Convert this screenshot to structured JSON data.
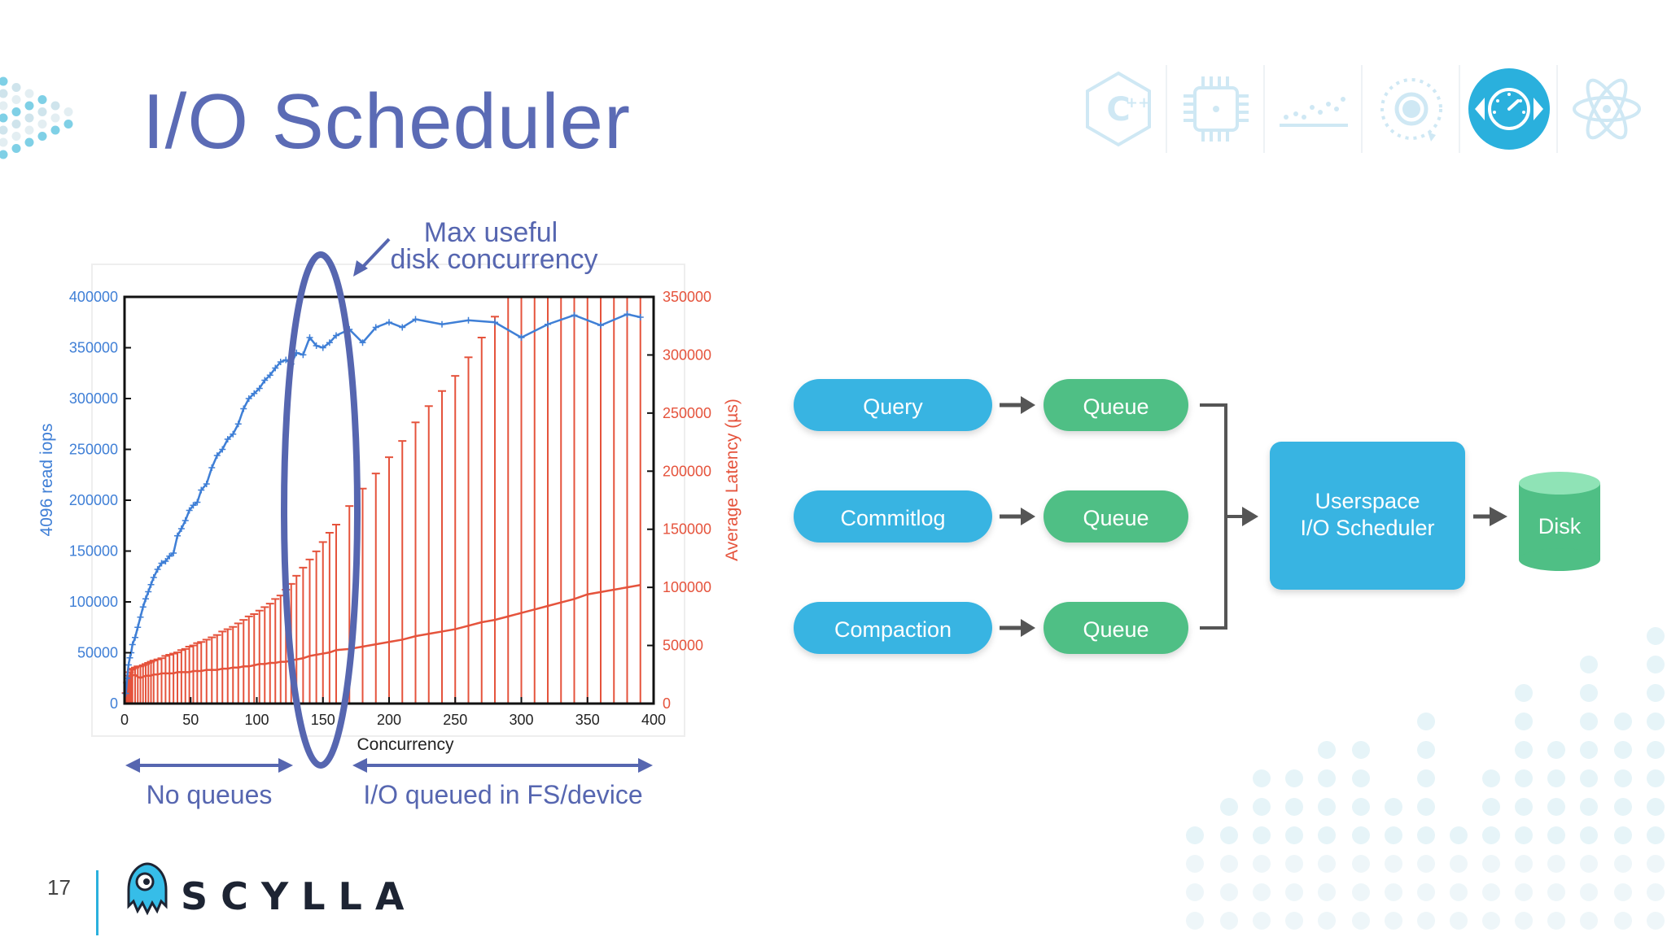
{
  "slide": {
    "title": "I/O Scheduler",
    "page_number": "17",
    "brand": "SCYLLA",
    "top_icons": [
      "cpp-icon",
      "cpu-chip-icon",
      "scatter-dots-icon",
      "target-rings-icon",
      "speedometer-icon",
      "atom-icon"
    ],
    "active_icon": "speedometer-icon",
    "accent_color": "#2ab0dd",
    "title_color": "#5b6bb5"
  },
  "chart_data": {
    "type": "line",
    "title": "",
    "xlabel": "Concurrency",
    "ylabel": "4096 read iops",
    "y2label": "Average Latency (µs)",
    "xlim": [
      0,
      400
    ],
    "ylim": [
      0,
      400000
    ],
    "y2lim": [
      0,
      350000
    ],
    "x_ticks": [
      0,
      50,
      100,
      150,
      200,
      250,
      300,
      350,
      400
    ],
    "y_ticks": [
      0,
      50000,
      100000,
      150000,
      200000,
      250000,
      300000,
      350000,
      400000
    ],
    "y2_ticks": [
      0,
      50000,
      100000,
      150000,
      200000,
      250000,
      300000,
      350000
    ],
    "colors": {
      "iops": "#3f7fd6",
      "latency": "#e5533c",
      "annotation": "#5666b0"
    },
    "series": [
      {
        "axis": "left",
        "x": [
          1,
          2,
          3,
          4,
          5,
          6,
          8,
          10,
          12,
          14,
          16,
          18,
          20,
          22,
          25,
          28,
          31,
          34,
          37,
          40,
          43,
          46,
          49,
          52,
          55,
          58,
          62,
          66,
          70,
          74,
          78,
          82,
          86,
          90,
          94,
          98,
          102,
          106,
          110,
          114,
          118,
          122,
          126,
          130,
          135,
          140,
          145,
          150,
          155,
          160,
          170,
          180,
          190,
          200,
          210,
          220,
          240,
          260,
          280,
          300,
          320,
          340,
          360,
          380,
          390
        ],
        "values": [
          10000,
          25000,
          38000,
          45000,
          50000,
          58000,
          65000,
          75000,
          85000,
          95000,
          103000,
          110000,
          117000,
          124000,
          132000,
          138000,
          140000,
          145000,
          148000,
          165000,
          172000,
          180000,
          190000,
          195000,
          198000,
          210000,
          216000,
          232000,
          244000,
          250000,
          260000,
          265000,
          275000,
          290000,
          300000,
          305000,
          310000,
          318000,
          323000,
          330000,
          336000,
          338000,
          334000,
          345000,
          343000,
          360000,
          352000,
          350000,
          355000,
          362000,
          368000,
          355000,
          370000,
          375000,
          370000,
          378000,
          373000,
          377000,
          375000,
          360000,
          373000,
          382000,
          372000,
          383000,
          380000
        ]
      },
      {
        "axis": "right",
        "x": [
          1,
          2,
          3,
          4,
          5,
          6,
          8,
          10,
          12,
          14,
          16,
          18,
          20,
          22,
          25,
          28,
          31,
          34,
          37,
          40,
          43,
          46,
          49,
          52,
          55,
          58,
          62,
          66,
          70,
          74,
          78,
          82,
          86,
          90,
          94,
          98,
          102,
          106,
          110,
          114,
          118,
          122,
          126,
          130,
          135,
          140,
          145,
          150,
          155,
          160,
          170,
          180,
          190,
          200,
          210,
          220,
          230,
          240,
          250,
          260,
          270,
          280,
          290,
          300,
          310,
          320,
          330,
          340,
          350,
          360,
          370,
          380,
          390
        ],
        "values": [
          8000,
          13000,
          18000,
          21000,
          23000,
          24000,
          25000,
          23000,
          22000,
          23000,
          24000,
          24000,
          24000,
          25000,
          25000,
          26000,
          26000,
          26000,
          26000,
          27000,
          27000,
          27000,
          27000,
          28000,
          28000,
          28000,
          29000,
          29000,
          29000,
          30000,
          30000,
          31000,
          31000,
          32000,
          32000,
          33000,
          34000,
          34000,
          35000,
          35000,
          36000,
          36000,
          37000,
          38000,
          39000,
          41000,
          42000,
          43000,
          44000,
          46000,
          47000,
          49000,
          51000,
          53000,
          55000,
          58000,
          60000,
          62000,
          64000,
          67000,
          70000,
          72000,
          75000,
          78000,
          81000,
          84000,
          87000,
          90000,
          94000,
          96000,
          98000,
          100000,
          102000
        ],
        "err_upper": [
          9000,
          18000,
          24000,
          27000,
          29000,
          30000,
          31000,
          32000,
          32000,
          33000,
          34000,
          35000,
          36000,
          37000,
          38000,
          39000,
          41000,
          42000,
          43000,
          44000,
          46000,
          47000,
          49000,
          50000,
          52000,
          53000,
          55000,
          57000,
          59000,
          62000,
          64000,
          66000,
          69000,
          72000,
          75000,
          77000,
          80000,
          83000,
          86000,
          90000,
          93000,
          98000,
          103000,
          110000,
          117000,
          124000,
          131000,
          139000,
          147000,
          154000,
          170000,
          185000,
          198000,
          212000,
          226000,
          242000,
          256000,
          269000,
          282000,
          298000,
          315000,
          333000,
          352000,
          368000,
          382000,
          395000,
          408000,
          422000,
          435000,
          448000,
          455000,
          458000,
          462000
        ],
        "err_lower": [
          0,
          0,
          0,
          0,
          0,
          0,
          0,
          0,
          0,
          0,
          0,
          0,
          0,
          0,
          0,
          0,
          0,
          0,
          0,
          0,
          0,
          0,
          0,
          0,
          0,
          0,
          0,
          0,
          0,
          0,
          0,
          0,
          0,
          0,
          0,
          0,
          0,
          0,
          0,
          0,
          0,
          0,
          0,
          0,
          0,
          0,
          0,
          0,
          0,
          0,
          0,
          0,
          0,
          0,
          0,
          0,
          0,
          0,
          0,
          0,
          0,
          0,
          0,
          0,
          0,
          0,
          0,
          0,
          0,
          0,
          0,
          0,
          0
        ]
      }
    ],
    "annotations": [
      {
        "text": "Max useful",
        "x": 150
      },
      {
        "text": "disk concurrency",
        "x": 150
      },
      {
        "text": "No queues",
        "range": [
          0,
          125
        ]
      },
      {
        "text": "I/O queued in FS/device",
        "range": [
          175,
          400
        ]
      }
    ]
  },
  "diagram": {
    "sources": [
      "Query",
      "Commitlog",
      "Compaction"
    ],
    "queue_label": "Queue",
    "scheduler_line1": "Userspace",
    "scheduler_line2": "I/O Scheduler",
    "disk_label": "Disk",
    "colors": {
      "source": "#39b4e2",
      "queue": "#4fbf85",
      "disk": "#4fbf85",
      "arrow": "#555555"
    }
  }
}
